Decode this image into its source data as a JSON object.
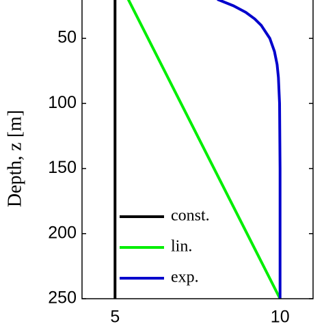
{
  "chart_data": {
    "type": "line",
    "ylabel": "Depth, z [m]",
    "xlim": [
      4,
      11
    ],
    "ylim": [
      20,
      250
    ],
    "y_inverted": true,
    "xticks": [
      5,
      10
    ],
    "yticks": [
      50,
      100,
      150,
      200,
      250
    ],
    "legend": "lower left",
    "series": [
      {
        "name": "const.",
        "color": "#000000",
        "x": [
          5,
          5
        ],
        "y": [
          20,
          250
        ]
      },
      {
        "name": "lin.",
        "color": "#00ee00",
        "x": [
          5.4,
          10
        ],
        "y": [
          20,
          250
        ]
      },
      {
        "name": "exp.",
        "color": "#0000cc",
        "x": [
          8.1,
          8.59,
          8.96,
          9.23,
          9.43,
          9.69,
          9.83,
          9.91,
          9.95,
          9.985,
          10,
          10,
          10
        ],
        "y": [
          20,
          25,
          30,
          35,
          40,
          50,
          60,
          70,
          80,
          100,
          150,
          200,
          250
        ]
      }
    ]
  }
}
